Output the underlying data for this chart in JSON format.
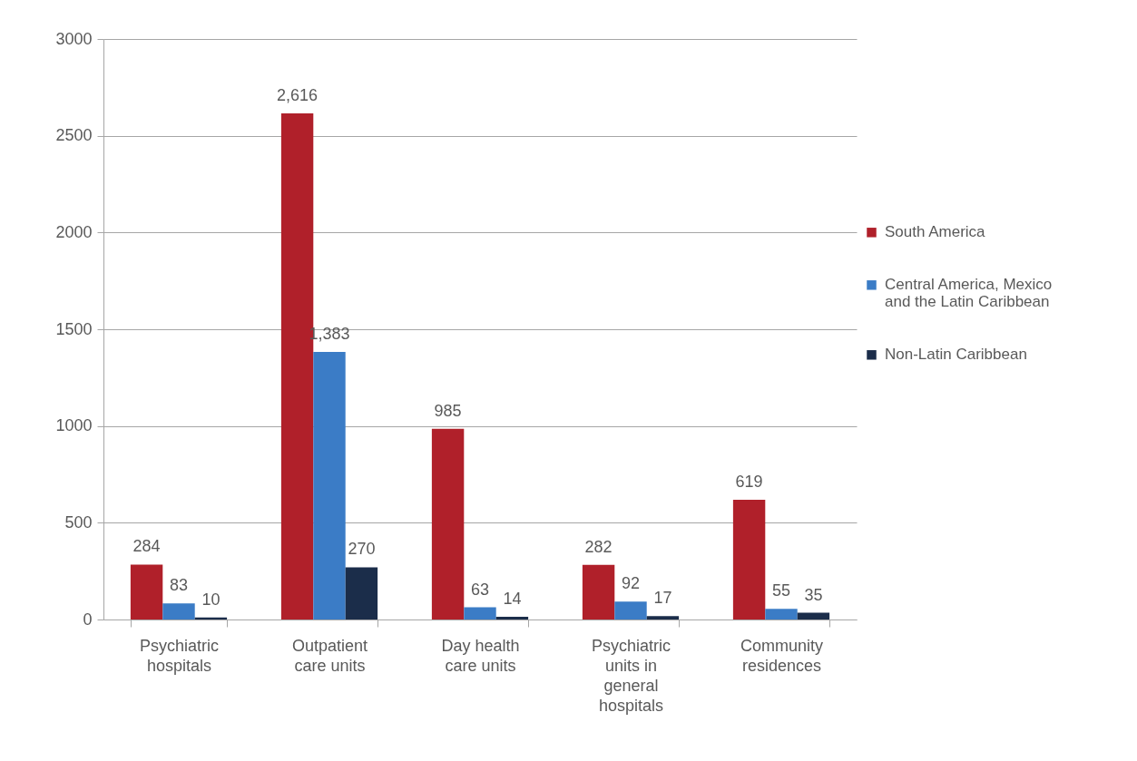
{
  "chart_data": {
    "type": "bar",
    "categories": [
      "Psychiatric hospitals",
      "Outpatient care units",
      "Day health care units",
      "Psychiatric units in general hospitals",
      "Community residences"
    ],
    "series": [
      {
        "name": "South America",
        "color": "#b0202a",
        "values": [
          284,
          2616,
          985,
          282,
          619
        ],
        "value_labels": [
          "284",
          "2,616",
          "985",
          "282",
          "619"
        ]
      },
      {
        "name": "Central America, Mexico and the Latin Caribbean",
        "color": "#3b7cc6",
        "values": [
          83,
          1383,
          63,
          92,
          55
        ],
        "value_labels": [
          "83",
          "1,383",
          "63",
          "92",
          "55"
        ]
      },
      {
        "name": "Non-Latin Caribbean",
        "color": "#1b2d4a",
        "values": [
          10,
          270,
          14,
          17,
          35
        ],
        "value_labels": [
          "10",
          "270",
          "14",
          "17",
          "35"
        ]
      }
    ],
    "ylim": [
      0,
      3000
    ],
    "yticks": [
      0,
      500,
      1000,
      1500,
      2000,
      2500,
      3000
    ],
    "grid": "y",
    "legend": "right"
  }
}
